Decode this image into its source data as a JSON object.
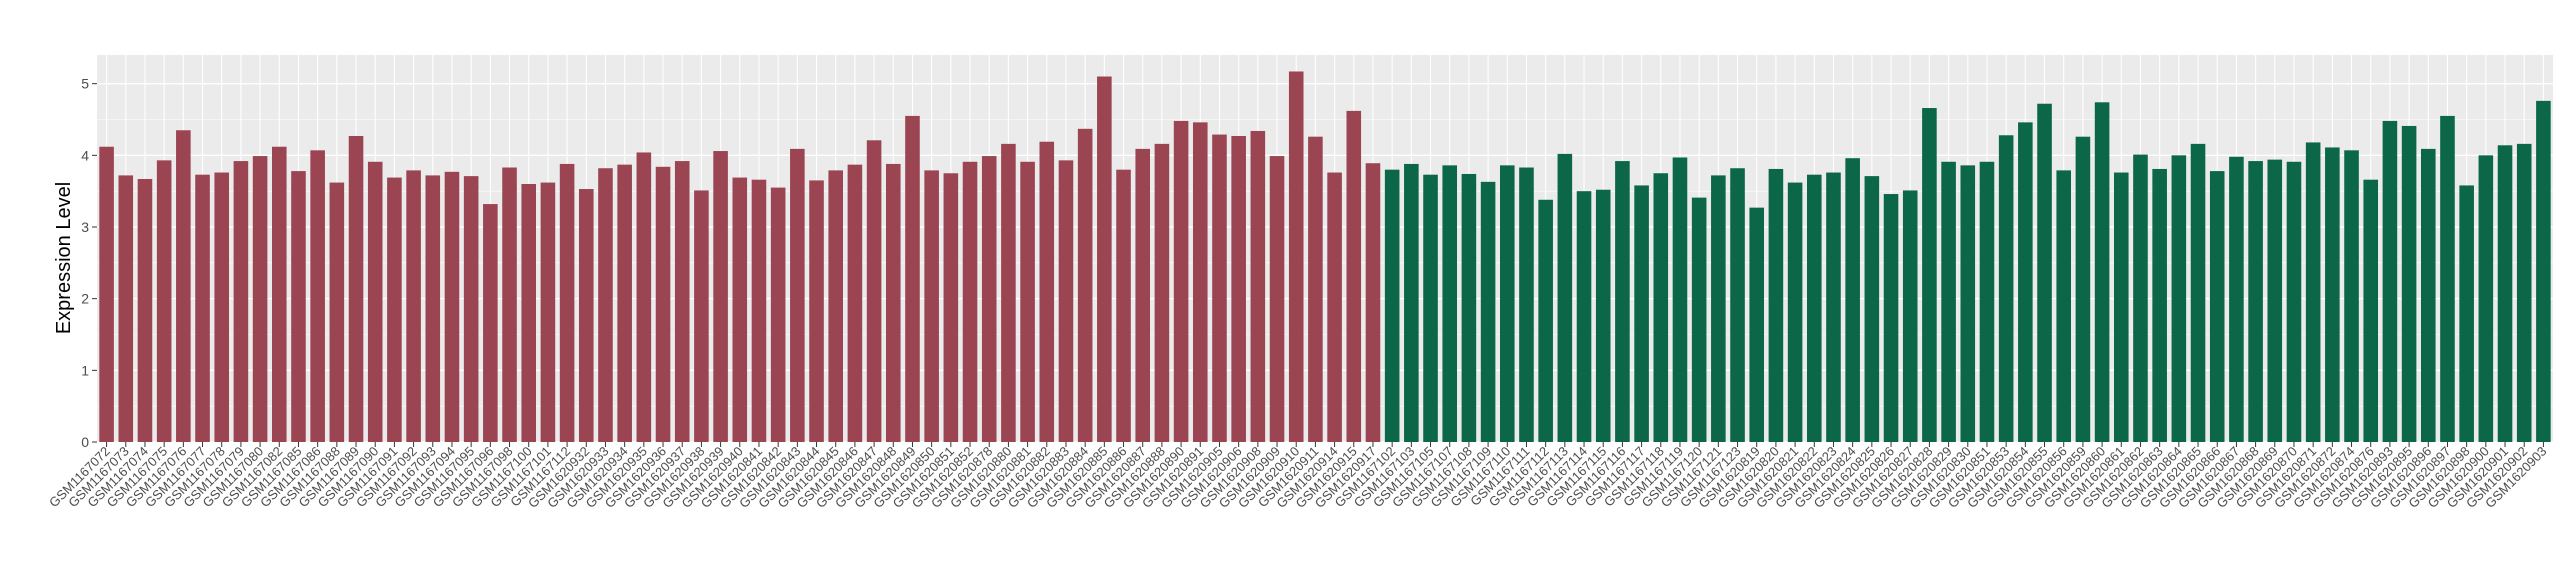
{
  "chart_data": {
    "type": "bar",
    "title": "",
    "xlabel": "",
    "ylabel": "Expression Level",
    "ylim": [
      0,
      5.4
    ],
    "y_ticks": [
      0,
      1,
      2,
      3,
      4,
      5
    ],
    "grid": true,
    "legend": "none",
    "colors": {
      "group1": "#9b4553",
      "group2": "#0b6747",
      "panel": "#ebebeb",
      "grid": "#ffffff"
    },
    "categories": [
      "GSM1167072",
      "GSM1167073",
      "GSM1167074",
      "GSM1167075",
      "GSM1167076",
      "GSM1167077",
      "GSM1167078",
      "GSM1167079",
      "GSM1167080",
      "GSM1167082",
      "GSM1167085",
      "GSM1167086",
      "GSM1167088",
      "GSM1167089",
      "GSM1167090",
      "GSM1167091",
      "GSM1167092",
      "GSM1167093",
      "GSM1167094",
      "GSM1167095",
      "GSM1167096",
      "GSM1167098",
      "GSM1167100",
      "GSM1167101",
      "GSM1167112",
      "GSM1620932",
      "GSM1620933",
      "GSM1620934",
      "GSM1620935",
      "GSM1620936",
      "GSM1620937",
      "GSM1620938",
      "GSM1620939",
      "GSM1620940",
      "GSM1620841",
      "GSM1620842",
      "GSM1620843",
      "GSM1620844",
      "GSM1620845",
      "GSM1620846",
      "GSM1620847",
      "GSM1620848",
      "GSM1620849",
      "GSM1620850",
      "GSM1620851",
      "GSM1620852",
      "GSM1620878",
      "GSM1620880",
      "GSM1620881",
      "GSM1620882",
      "GSM1620883",
      "GSM1620884",
      "GSM1620885",
      "GSM1620886",
      "GSM1620887",
      "GSM1620888",
      "GSM1620890",
      "GSM1620891",
      "GSM1620905",
      "GSM1620906",
      "GSM1620908",
      "GSM1620909",
      "GSM1620910",
      "GSM1620911",
      "GSM1620914",
      "GSM1620915",
      "GSM1620917",
      "GSM1167102",
      "GSM1167103",
      "GSM1167105",
      "GSM1167107",
      "GSM1167108",
      "GSM1167109",
      "GSM1167110",
      "GSM1167111",
      "GSM1167112",
      "GSM1167113",
      "GSM1167114",
      "GSM1167115",
      "GSM1167116",
      "GSM1167117",
      "GSM1167118",
      "GSM1167119",
      "GSM1167120",
      "GSM1167121",
      "GSM1167123",
      "GSM1620819",
      "GSM1620820",
      "GSM1620821",
      "GSM1620822",
      "GSM1620823",
      "GSM1620824",
      "GSM1620825",
      "GSM1620826",
      "GSM1620827",
      "GSM1620828",
      "GSM1620829",
      "GSM1620830",
      "GSM1620851",
      "GSM1620853",
      "GSM1620854",
      "GSM1620855",
      "GSM1620856",
      "GSM1620859",
      "GSM1620860",
      "GSM1620861",
      "GSM1620862",
      "GSM1620863",
      "GSM1620864",
      "GSM1620865",
      "GSM1620866",
      "GSM1620867",
      "GSM1620868",
      "GSM1620869",
      "GSM1620870",
      "GSM1620871",
      "GSM1620872",
      "GSM1620874",
      "GSM1620876",
      "GSM1620893",
      "GSM1620895",
      "GSM1620896",
      "GSM1620897",
      "GSM1620898",
      "GSM1620900",
      "GSM1620901",
      "GSM1620902",
      "GSM1620903"
    ],
    "values": [
      4.12,
      3.72,
      3.67,
      3.93,
      4.35,
      3.73,
      3.76,
      3.92,
      3.99,
      4.12,
      3.78,
      4.07,
      3.62,
      4.27,
      3.91,
      3.69,
      3.79,
      3.72,
      3.77,
      3.71,
      3.32,
      3.83,
      3.6,
      3.62,
      3.88,
      3.53,
      3.82,
      3.87,
      4.04,
      3.84,
      3.92,
      3.51,
      4.06,
      3.69,
      3.66,
      3.55,
      4.09,
      3.65,
      3.79,
      3.87,
      4.21,
      3.88,
      4.55,
      3.79,
      3.75,
      3.91,
      3.99,
      4.16,
      3.91,
      4.19,
      3.93,
      4.37,
      5.1,
      3.8,
      4.09,
      4.16,
      4.48,
      4.46,
      4.29,
      4.27,
      4.34,
      3.99,
      5.17,
      4.26,
      3.76,
      4.62,
      3.89,
      3.8,
      3.88,
      3.73,
      3.86,
      3.74,
      3.63,
      3.86,
      3.83,
      3.38,
      4.02,
      3.5,
      3.52,
      3.92,
      3.58,
      3.75,
      3.97,
      3.41,
      3.72,
      3.82,
      3.27,
      3.81,
      3.62,
      3.73,
      3.76,
      3.96,
      3.71,
      3.46,
      3.51,
      4.66,
      3.91,
      3.86,
      3.91,
      4.28,
      4.46,
      4.72,
      3.79,
      4.26,
      4.74,
      3.76,
      4.01,
      3.81,
      4.0,
      4.16,
      3.78,
      3.98,
      3.92,
      3.94,
      3.91,
      4.18,
      4.11,
      4.07,
      3.66,
      4.48,
      4.41,
      4.09,
      4.55,
      3.58,
      4.0,
      4.14,
      4.16,
      4.76
    ],
    "group_sizes": [
      67,
      61
    ]
  }
}
